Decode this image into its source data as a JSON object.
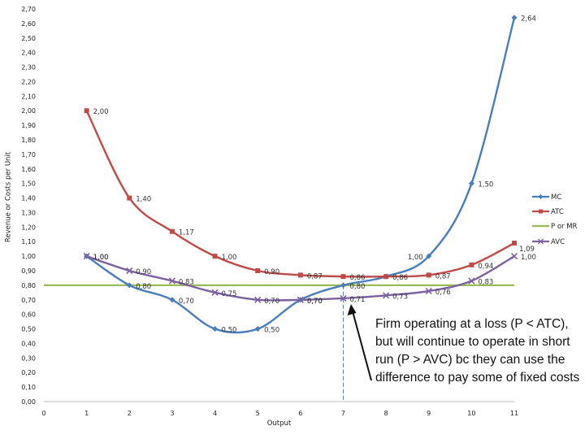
{
  "chart_data": {
    "type": "line",
    "title": "",
    "xlabel": "Output",
    "ylabel": "Revenue or Costs per Unit",
    "xlim": [
      0,
      11
    ],
    "ylim": [
      0,
      2.7
    ],
    "x_ticks": [
      "0",
      "1",
      "2",
      "3",
      "4",
      "5",
      "6",
      "7",
      "8",
      "9",
      "10",
      "11"
    ],
    "y_ticks": [
      "0,00",
      "0,10",
      "0,20",
      "0,30",
      "0,40",
      "0,50",
      "0,60",
      "0,70",
      "0,80",
      "0,90",
      "1,00",
      "1,10",
      "1,20",
      "1,30",
      "1,40",
      "1,50",
      "1,60",
      "1,70",
      "1,80",
      "1,90",
      "2,00",
      "2,10",
      "2,20",
      "2,30",
      "2,40",
      "2,50",
      "2,60",
      "2,70"
    ],
    "series": [
      {
        "name": "MC",
        "color": "#4a7ebb",
        "marker": "diamond",
        "smooth": true,
        "x": [
          1,
          2,
          3,
          4,
          5,
          6,
          7,
          8,
          9,
          10,
          11
        ],
        "values": [
          1.0,
          0.8,
          0.7,
          0.5,
          0.5,
          0.7,
          0.8,
          0.86,
          1.0,
          1.5,
          2.64
        ],
        "labels": [
          "1,00",
          "0,80",
          "0,70",
          "0,50",
          "0,50",
          "0,70",
          "0,80",
          "",
          "1,00",
          "1,50",
          "2,64"
        ]
      },
      {
        "name": "ATC",
        "color": "#be4b48",
        "marker": "square",
        "smooth": true,
        "x": [
          1,
          2,
          3,
          4,
          5,
          6,
          7,
          8,
          9,
          10,
          11
        ],
        "values": [
          2.0,
          1.4,
          1.17,
          1.0,
          0.9,
          0.87,
          0.86,
          0.86,
          0.87,
          0.94,
          1.09
        ],
        "labels": [
          "2,00",
          "1,40",
          "1,17",
          "1,00",
          "0,90",
          "0,87",
          "0,86",
          "0,86",
          "0,87",
          "0,94",
          "1,09"
        ]
      },
      {
        "name": "P or MR",
        "color": "#9bbb59",
        "marker": "none",
        "smooth": false,
        "x": [
          0,
          11
        ],
        "values": [
          0.8,
          0.8
        ],
        "labels": [
          "",
          ""
        ]
      },
      {
        "name": "AVC",
        "color": "#7d60a0",
        "marker": "x",
        "smooth": true,
        "x": [
          1,
          2,
          3,
          4,
          5,
          6,
          7,
          8,
          9,
          10,
          11
        ],
        "values": [
          1.0,
          0.9,
          0.83,
          0.75,
          0.7,
          0.7,
          0.71,
          0.73,
          0.76,
          0.83,
          1.0
        ],
        "labels": [
          "1,00",
          "0,90",
          "0,83",
          "0,75",
          "0,70",
          "0,70",
          "0,71",
          "0,73",
          "0,76",
          "0,83",
          "1,00"
        ]
      }
    ],
    "guide_line": {
      "x": 7,
      "color": "#4a7ebb",
      "style": "dashed"
    },
    "annotation": "Firm operating at a loss (P < ATC), but will continue to operate in short run (P > AVC) bc they can use the difference to pay some of fixed costs",
    "legend_position": "right"
  }
}
